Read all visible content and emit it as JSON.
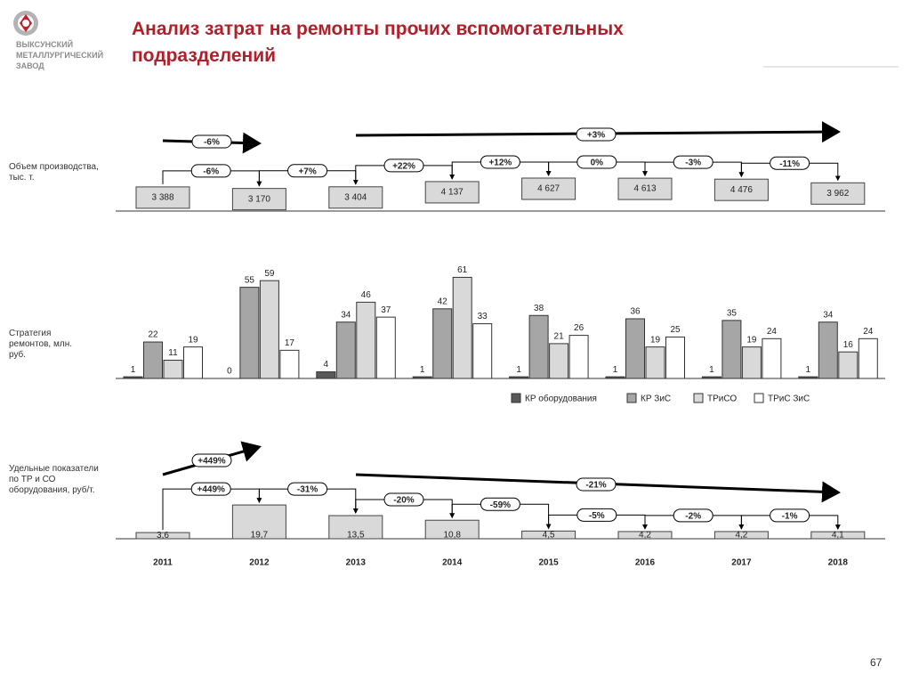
{
  "logo": [
    "ВЫКСУНСКИЙ",
    "МЕТАЛЛУРГИЧЕСКИЙ",
    "ЗАВОД"
  ],
  "title": "Анализ затрат на ремонты прочих вспомогательных подразделений",
  "page_number": "67",
  "chart_data": [
    {
      "type": "box",
      "row_label": "Объем производства, тыс. т.",
      "values": [
        3388,
        3170,
        3404,
        4137,
        4627,
        4613,
        4476,
        3962
      ],
      "value_labels": [
        "3 388",
        "3 170",
        "3 404",
        "4 137",
        "4 627",
        "4 613",
        "4 476",
        "3 962"
      ],
      "changes": [
        "-6%",
        "+7%",
        "+22%",
        "+12%",
        "0%",
        "-3%",
        "-11%"
      ],
      "trends": [
        "-6%",
        "+3%"
      ],
      "color": "#d9d9d9",
      "ylim": [
        0,
        5000
      ]
    },
    {
      "type": "grouped-bar",
      "row_label": "Стратегия ремонтов, млн. руб.",
      "series": [
        {
          "name": "КР оборудования",
          "color": "#595959",
          "values": [
            1,
            0,
            4,
            1,
            1,
            1,
            1,
            1
          ]
        },
        {
          "name": "КР ЗиС",
          "color": "#a6a6a6",
          "values": [
            22,
            55,
            34,
            42,
            38,
            36,
            35,
            34
          ]
        },
        {
          "name": "ТРиСО",
          "color": "#d9d9d9",
          "values": [
            11,
            59,
            46,
            61,
            21,
            19,
            19,
            16
          ]
        },
        {
          "name": "ТРиС ЗиС",
          "color": "#ffffff",
          "values": [
            19,
            17,
            37,
            33,
            26,
            25,
            24,
            24
          ]
        }
      ],
      "ylim": [
        0,
        65
      ]
    },
    {
      "type": "box",
      "row_label": "Удельные показатели по ТР и СО оборудования, руб/т.",
      "categories": [
        "2011",
        "2012",
        "2013",
        "2014",
        "2015",
        "2016",
        "2017",
        "2018"
      ],
      "values": [
        3.6,
        19.7,
        13.5,
        10.8,
        4.5,
        4.2,
        4.2,
        4.1
      ],
      "value_labels": [
        "3,6",
        "19,7",
        "13,5",
        "10,8",
        "4,5",
        "4,2",
        "4,2",
        "4,1"
      ],
      "changes": [
        "+449%",
        "-31%",
        "-20%",
        "-59%",
        "-5%",
        "-2%",
        "-1%"
      ],
      "trends": [
        "+449%",
        "-21%"
      ],
      "color": "#d9d9d9",
      "ylim": [
        0,
        40
      ]
    }
  ]
}
